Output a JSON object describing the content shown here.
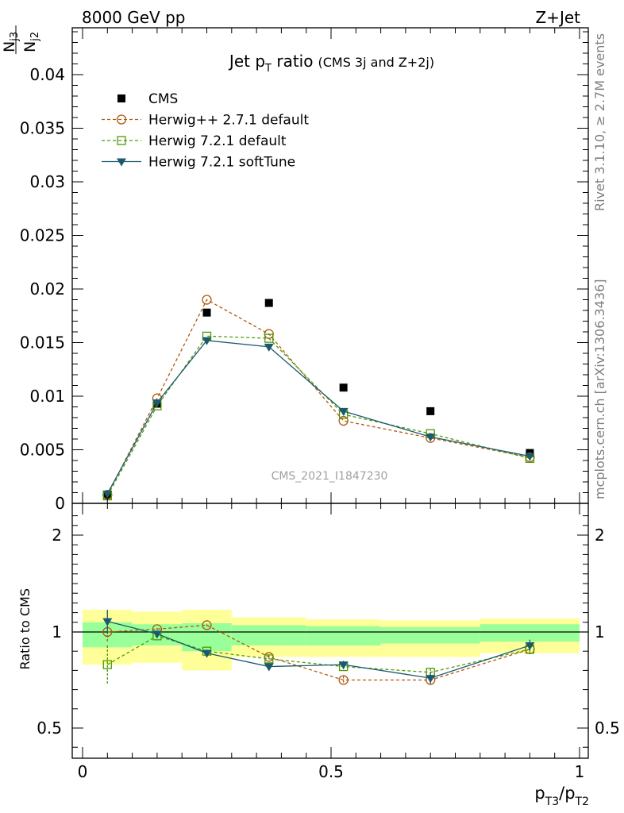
{
  "header": {
    "beam": "8000 GeV pp",
    "process": "Z+Jet",
    "side_rivet": "Rivet 3.1.10, ≥ 2.7M events",
    "side_mcplots": "mcplots.cern.ch [arXiv:1306.3436]",
    "watermark": "CMS_2021_I1847230"
  },
  "chart_data": [
    {
      "type": "scatter",
      "panel": "main",
      "title": "Jet pT ratio (CMS 3j and Z+2j)",
      "title_main": "Jet p",
      "title_sub": "T",
      "title_mid": " ratio",
      "title_small": "(CMS 3j and Z+2j)",
      "ylabel": "N_j3 / N_j2",
      "ylabel_num": "N",
      "ylabel_num_sub": "j3",
      "ylabel_den": "N",
      "ylabel_den_sub": "j2",
      "xlim": [
        0,
        1
      ],
      "ylim": [
        0,
        0.044
      ],
      "yticks": [
        0,
        0.005,
        0.01,
        0.015,
        0.02,
        0.025,
        0.03,
        0.035,
        0.04
      ],
      "ytick_labels": [
        "0",
        "0.005",
        "0.01",
        "0.015",
        "0.02",
        "0.025",
        "0.03",
        "0.035",
        "0.04"
      ],
      "legend_position": "top-left",
      "x": [
        0.05,
        0.15,
        0.25,
        0.375,
        0.525,
        0.7,
        0.9
      ],
      "series": [
        {
          "name": "CMS",
          "color": "#000000",
          "marker": "square-filled",
          "line": "none",
          "values": [
            0.0008,
            0.0093,
            0.0178,
            0.0187,
            0.0108,
            0.0086,
            0.0047
          ]
        },
        {
          "name": "Herwig++ 2.7.1 default",
          "color": "#b05a10",
          "marker": "circle-open",
          "line": "dashed",
          "values": [
            0.0008,
            0.0098,
            0.019,
            0.0158,
            0.0077,
            0.0061,
            0.0043
          ]
        },
        {
          "name": "Herwig 7.2.1 default",
          "color": "#4e9a06",
          "marker": "square-open",
          "line": "dashed",
          "values": [
            0.0007,
            0.0091,
            0.0156,
            0.0154,
            0.0083,
            0.0065,
            0.0042
          ]
        },
        {
          "name": "Herwig 7.2.1 softTune",
          "color": "#1b5a6e",
          "marker": "triangle-down-filled",
          "line": "solid",
          "values": [
            0.0009,
            0.0094,
            0.0152,
            0.0146,
            0.0086,
            0.0062,
            0.0044
          ]
        }
      ]
    },
    {
      "type": "scatter",
      "panel": "ratio",
      "ylabel": "Ratio to CMS",
      "xlabel": "p_T3/p_T2",
      "xlabel_p1": "p",
      "xlabel_s1": "T3",
      "xlabel_slash": "/p",
      "xlabel_s2": "T2",
      "xlim": [
        0,
        1
      ],
      "ylim": [
        0.35,
        2.25
      ],
      "yticks": [
        0.5,
        1,
        2
      ],
      "ytick_labels": [
        "0.5",
        "1",
        "2"
      ],
      "xticks": [
        0,
        0.5,
        1
      ],
      "xtick_labels": [
        "0",
        "0.5",
        "1"
      ],
      "bins": [
        [
          0,
          0.1
        ],
        [
          0.1,
          0.2
        ],
        [
          0.2,
          0.3
        ],
        [
          0.3,
          0.45
        ],
        [
          0.45,
          0.6
        ],
        [
          0.6,
          0.8
        ],
        [
          0.8,
          1.0
        ]
      ],
      "band_yellow": [
        [
          0.83,
          1.23
        ],
        [
          0.84,
          1.21
        ],
        [
          0.8,
          1.23
        ],
        [
          0.87,
          1.15
        ],
        [
          0.87,
          1.13
        ],
        [
          0.87,
          1.12
        ],
        [
          0.89,
          1.14
        ]
      ],
      "band_green": [
        [
          0.92,
          1.1
        ],
        [
          0.93,
          1.08
        ],
        [
          0.9,
          1.09
        ],
        [
          0.93,
          1.07
        ],
        [
          0.93,
          1.06
        ],
        [
          0.94,
          1.05
        ],
        [
          0.95,
          1.08
        ]
      ],
      "x": [
        0.05,
        0.15,
        0.25,
        0.375,
        0.525,
        0.7,
        0.9
      ],
      "series": [
        {
          "name": "Herwig++ 2.7.1 default",
          "color": "#b05a10",
          "marker": "circle-open",
          "line": "dashed",
          "values": [
            1.0,
            1.03,
            1.07,
            0.87,
            0.75,
            0.75,
            0.91
          ],
          "errors": [
            0.05,
            0.01,
            0.01,
            0.01,
            0.02,
            0.02,
            0.03
          ]
        },
        {
          "name": "Herwig 7.2.1 default",
          "color": "#4e9a06",
          "marker": "square-open",
          "line": "dashed",
          "values": [
            0.83,
            0.98,
            0.9,
            0.86,
            0.82,
            0.79,
            0.91
          ],
          "errors": [
            0.1,
            0.01,
            0.01,
            0.01,
            0.02,
            0.02,
            0.03
          ]
        },
        {
          "name": "Herwig 7.2.1 softTune",
          "color": "#1b5a6e",
          "marker": "triangle-down-filled",
          "line": "solid",
          "values": [
            1.11,
            0.99,
            0.89,
            0.82,
            0.83,
            0.76,
            0.93
          ],
          "errors": [
            0.12,
            0.01,
            0.01,
            0.01,
            0.02,
            0.03,
            0.03
          ]
        }
      ]
    }
  ]
}
